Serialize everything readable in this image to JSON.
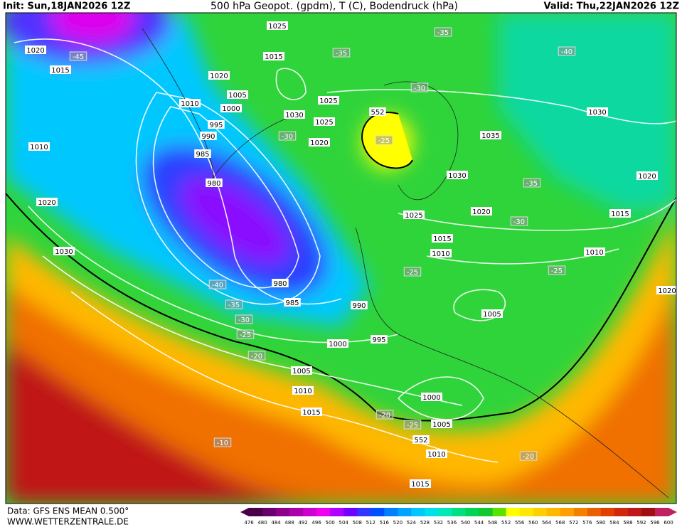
{
  "header": {
    "init": "Init: Sun,18JAN2026 12Z",
    "title": "500 hPa Geopot. (gpdm), T (C), Bodendruck (hPa)",
    "valid": "Valid: Thu,22JAN2026 12Z"
  },
  "footer": {
    "data": "Data: GFS ENS MEAN 0.500°",
    "site": "WWW.WETTERZENTRALE.DE"
  },
  "map": {
    "isobars": [
      "1020",
      "1015",
      "1025",
      "1015",
      "1020",
      "1005",
      "1010",
      "1000",
      "995",
      "990",
      "985",
      "980",
      "1030",
      "1025",
      "1025",
      "1020",
      "1010",
      "1020",
      "1030",
      "1035",
      "1030",
      "1030",
      "1020",
      "1020",
      "1025",
      "1015",
      "1010",
      "1015",
      "1010",
      "1020",
      "980",
      "985",
      "990",
      "995",
      "1000",
      "1005",
      "1005",
      "1010",
      "1015",
      "1000",
      "1005",
      "1010",
      "1015"
    ],
    "contour552": [
      "552",
      "552"
    ],
    "temps": [
      "-45",
      "-35",
      "-35",
      "-40",
      "-30",
      "-30",
      "-25",
      "-35",
      "-30",
      "-25",
      "-25",
      "-40",
      "-35",
      "-30",
      "-25",
      "-20",
      "-20",
      "-25",
      "-10",
      "-20"
    ]
  },
  "legend": {
    "values": [
      476,
      480,
      484,
      488,
      492,
      496,
      500,
      504,
      508,
      512,
      516,
      520,
      524,
      528,
      532,
      536,
      540,
      544,
      548,
      552,
      556,
      560,
      564,
      568,
      572,
      576,
      580,
      584,
      588,
      592,
      596,
      600
    ],
    "colors": [
      "#4a0048",
      "#6a006e",
      "#8c008c",
      "#ad00ad",
      "#cf00cf",
      "#ee00ee",
      "#b000ff",
      "#7000ff",
      "#3434ff",
      "#0050ff",
      "#0080ff",
      "#00a4ff",
      "#00c8ff",
      "#00e0e8",
      "#00e8b8",
      "#00e080",
      "#00d454",
      "#10c830",
      "#5ce000",
      "#ffff00",
      "#ffe800",
      "#ffd000",
      "#ffb800",
      "#ffa000",
      "#f48000",
      "#e86000",
      "#e04000",
      "#d02810",
      "#c01818",
      "#a01010",
      "#c02060"
    ]
  }
}
